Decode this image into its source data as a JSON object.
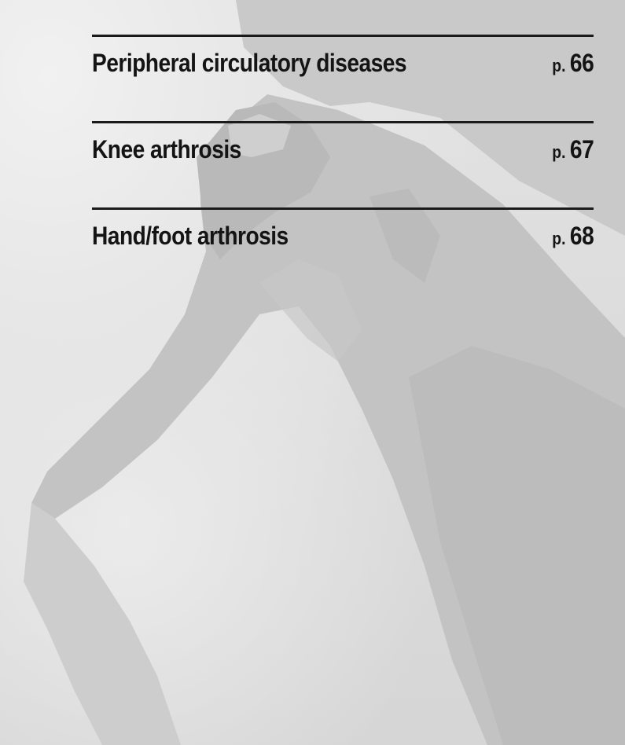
{
  "toc": {
    "entries": [
      {
        "title": "Peripheral circulatory diseases",
        "page_prefix": "p.",
        "page_number": "66"
      },
      {
        "title": "Knee arthrosis",
        "page_prefix": "p.",
        "page_number": "67"
      },
      {
        "title": "Hand/foot arthrosis",
        "page_prefix": "p.",
        "page_number": "68"
      }
    ]
  },
  "colors": {
    "text": "#141414",
    "rule": "#1a1a1a",
    "background": "#d9d9d9"
  }
}
